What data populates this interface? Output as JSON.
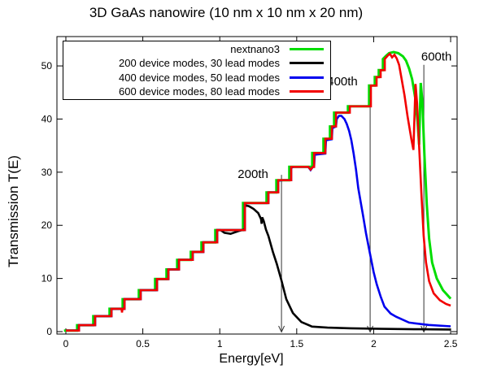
{
  "title": "3D GaAs nanowire (10 nm x 10 nm x 20 nm)",
  "chart_data": {
    "type": "line",
    "title": "3D GaAs nanowire (10 nm x 10 nm x 20 nm)",
    "xlabel": "Energy[eV]",
    "ylabel": "Transmission T(E)",
    "xlim": [
      -0.058,
      2.542
    ],
    "ylim": [
      -0.46,
      55.52
    ],
    "xticks": [
      0,
      0.5,
      1,
      1.5,
      2,
      2.5
    ],
    "yticks": [
      0,
      10,
      20,
      30,
      40,
      50
    ],
    "grid": false,
    "legend_position": "top-left-inside",
    "series": [
      {
        "name": "nextnano3",
        "color": "#00dd00",
        "width": 3,
        "points": [
          [
            -0.012,
            0.2
          ],
          [
            0.073,
            0.2
          ],
          [
            0.073,
            1.2
          ],
          [
            0.178,
            1.2
          ],
          [
            0.178,
            2.9
          ],
          [
            0.284,
            2.9
          ],
          [
            0.284,
            4.3
          ],
          [
            0.369,
            4.3
          ],
          [
            0.369,
            6.1
          ],
          [
            0.474,
            6.1
          ],
          [
            0.474,
            7.8
          ],
          [
            0.58,
            7.8
          ],
          [
            0.58,
            9.9
          ],
          [
            0.654,
            9.9
          ],
          [
            0.654,
            11.7
          ],
          [
            0.723,
            11.7
          ],
          [
            0.723,
            13.5
          ],
          [
            0.812,
            13.5
          ],
          [
            0.812,
            15
          ],
          [
            0.881,
            15
          ],
          [
            0.881,
            16.8
          ],
          [
            0.971,
            16.8
          ],
          [
            0.971,
            19.1
          ],
          [
            1.151,
            19.1
          ],
          [
            1.151,
            24.2
          ],
          [
            1.304,
            24.2
          ],
          [
            1.304,
            26.2
          ],
          [
            1.368,
            26.2
          ],
          [
            1.368,
            28.5
          ],
          [
            1.452,
            28.5
          ],
          [
            1.452,
            31
          ],
          [
            1.601,
            31
          ],
          [
            1.601,
            33.6
          ],
          [
            1.674,
            33.6
          ],
          [
            1.674,
            36.3
          ],
          [
            1.716,
            36.3
          ],
          [
            1.716,
            38.6
          ],
          [
            1.743,
            38.6
          ],
          [
            1.743,
            41.2
          ],
          [
            1.833,
            41.2
          ],
          [
            1.833,
            42.4
          ],
          [
            1.97,
            42.4
          ],
          [
            1.97,
            46.3
          ],
          [
            2.007,
            46.3
          ],
          [
            2.007,
            47.9
          ],
          [
            2.033,
            47.9
          ],
          [
            2.033,
            49.2
          ],
          [
            2.06,
            49.2
          ],
          [
            2.06,
            51.3
          ],
          [
            2.08,
            51.9
          ],
          [
            2.1,
            52.4
          ],
          [
            2.13,
            52.6
          ],
          [
            2.16,
            52.4
          ],
          [
            2.19,
            51.8
          ],
          [
            2.21,
            51.0
          ],
          [
            2.23,
            49.5
          ],
          [
            2.25,
            47.5
          ],
          [
            2.27,
            44.0
          ],
          [
            2.285,
            39.5
          ],
          [
            2.295,
            35.2
          ],
          [
            2.306,
            46.8
          ],
          [
            2.316,
            43.5
          ],
          [
            2.33,
            33.0
          ],
          [
            2.345,
            24.0
          ],
          [
            2.36,
            17.5
          ],
          [
            2.38,
            13.0
          ],
          [
            2.41,
            10.0
          ],
          [
            2.45,
            7.8
          ],
          [
            2.5,
            6.2
          ]
        ]
      },
      {
        "name": "200 device modes, 30 lead modes",
        "color": "#000000",
        "width": 2.6,
        "points": [
          [
            0,
            0.2
          ],
          [
            0.085,
            0.2
          ],
          [
            0.085,
            1.2
          ],
          [
            0.19,
            1.2
          ],
          [
            0.19,
            2.9
          ],
          [
            0.296,
            2.9
          ],
          [
            0.296,
            4.3
          ],
          [
            0.381,
            4.3
          ],
          [
            0.381,
            6.1
          ],
          [
            0.486,
            6.1
          ],
          [
            0.486,
            7.8
          ],
          [
            0.592,
            7.8
          ],
          [
            0.592,
            9.9
          ],
          [
            0.666,
            9.9
          ],
          [
            0.666,
            11.7
          ],
          [
            0.735,
            11.7
          ],
          [
            0.735,
            13.5
          ],
          [
            0.824,
            13.5
          ],
          [
            0.824,
            15
          ],
          [
            0.893,
            15
          ],
          [
            0.893,
            16.8
          ],
          [
            0.983,
            16.8
          ],
          [
            0.983,
            19.1
          ],
          [
            1.005,
            19.1
          ],
          [
            1.03,
            18.6
          ],
          [
            1.07,
            18.4
          ],
          [
            1.12,
            18.9
          ],
          [
            1.155,
            19.2
          ],
          [
            1.163,
            19.3
          ],
          [
            1.163,
            23.8
          ],
          [
            1.19,
            23.6
          ],
          [
            1.22,
            23.1
          ],
          [
            1.25,
            22.3
          ],
          [
            1.268,
            21.2
          ],
          [
            1.272,
            20.3
          ],
          [
            1.276,
            21.5
          ],
          [
            1.286,
            20.8
          ],
          [
            1.3,
            19.2
          ],
          [
            1.316,
            18.0
          ],
          [
            1.345,
            15.0
          ],
          [
            1.37,
            12.8
          ],
          [
            1.401,
            9.6
          ],
          [
            1.432,
            6.1
          ],
          [
            1.475,
            3.5
          ],
          [
            1.53,
            1.8
          ],
          [
            1.6,
            0.95
          ],
          [
            1.7,
            0.75
          ],
          [
            1.85,
            0.62
          ],
          [
            2.05,
            0.52
          ],
          [
            2.3,
            0.45
          ],
          [
            2.5,
            0.4
          ]
        ]
      },
      {
        "name": "400 device modes, 50 lead modes",
        "color": "#0000ee",
        "width": 2.6,
        "points": [
          [
            0,
            0.2
          ],
          [
            0.085,
            0.2
          ],
          [
            0.085,
            1.2
          ],
          [
            0.19,
            1.2
          ],
          [
            0.19,
            2.9
          ],
          [
            0.296,
            2.9
          ],
          [
            0.296,
            4.3
          ],
          [
            0.381,
            4.3
          ],
          [
            0.381,
            6.1
          ],
          [
            0.486,
            6.1
          ],
          [
            0.486,
            7.8
          ],
          [
            0.592,
            7.8
          ],
          [
            0.592,
            9.9
          ],
          [
            0.666,
            9.9
          ],
          [
            0.666,
            11.7
          ],
          [
            0.735,
            11.7
          ],
          [
            0.735,
            13.5
          ],
          [
            0.824,
            13.5
          ],
          [
            0.824,
            15
          ],
          [
            0.893,
            15
          ],
          [
            0.893,
            16.8
          ],
          [
            0.983,
            16.8
          ],
          [
            0.983,
            19.1
          ],
          [
            1.163,
            19.1
          ],
          [
            1.163,
            24.2
          ],
          [
            1.316,
            24.2
          ],
          [
            1.316,
            26.2
          ],
          [
            1.38,
            26.2
          ],
          [
            1.38,
            28.4
          ],
          [
            1.41,
            28.5
          ],
          [
            1.464,
            28.5
          ],
          [
            1.464,
            30.8
          ],
          [
            1.478,
            31
          ],
          [
            1.575,
            31
          ],
          [
            1.59,
            30.4
          ],
          [
            1.605,
            31
          ],
          [
            1.613,
            31
          ],
          [
            1.617,
            33.3
          ],
          [
            1.686,
            33.5
          ],
          [
            1.69,
            36.0
          ],
          [
            1.728,
            36.2
          ],
          [
            1.732,
            38.3
          ],
          [
            1.755,
            38.6
          ],
          [
            1.76,
            40.0
          ],
          [
            1.775,
            40.6
          ],
          [
            1.79,
            40.6
          ],
          [
            1.81,
            40.0
          ],
          [
            1.825,
            39.1
          ],
          [
            1.84,
            37.8
          ],
          [
            1.855,
            36.0
          ],
          [
            1.87,
            33.5
          ],
          [
            1.885,
            30.5
          ],
          [
            1.9,
            27.0
          ],
          [
            1.93,
            22.0
          ],
          [
            1.95,
            18.5
          ],
          [
            1.972,
            15.3
          ],
          [
            2.0,
            11.2
          ],
          [
            2.02,
            8.9
          ],
          [
            2.045,
            6.6
          ],
          [
            2.07,
            4.7
          ],
          [
            2.11,
            3.4
          ],
          [
            2.146,
            2.8
          ],
          [
            2.23,
            1.7
          ],
          [
            2.357,
            1.25
          ],
          [
            2.5,
            1.0
          ]
        ]
      },
      {
        "name": "600 device modes, 80 lead modes",
        "color": "#f20000",
        "width": 2.6,
        "points": [
          [
            0,
            0.2
          ],
          [
            0.085,
            0.2
          ],
          [
            0.085,
            1.2
          ],
          [
            0.19,
            1.2
          ],
          [
            0.19,
            2.9
          ],
          [
            0.296,
            2.9
          ],
          [
            0.296,
            4.3
          ],
          [
            0.362,
            4.3
          ],
          [
            0.365,
            3.6
          ],
          [
            0.368,
            4.3
          ],
          [
            0.381,
            4.3
          ],
          [
            0.381,
            6.1
          ],
          [
            0.486,
            6.1
          ],
          [
            0.486,
            7.8
          ],
          [
            0.592,
            7.8
          ],
          [
            0.592,
            9.9
          ],
          [
            0.666,
            9.9
          ],
          [
            0.666,
            11.7
          ],
          [
            0.735,
            11.7
          ],
          [
            0.735,
            13.5
          ],
          [
            0.824,
            13.5
          ],
          [
            0.824,
            15
          ],
          [
            0.893,
            15
          ],
          [
            0.893,
            16.8
          ],
          [
            0.983,
            16.8
          ],
          [
            0.983,
            19.1
          ],
          [
            1.163,
            19.1
          ],
          [
            1.163,
            24.2
          ],
          [
            1.316,
            24.2
          ],
          [
            1.316,
            26.2
          ],
          [
            1.38,
            26.2
          ],
          [
            1.38,
            28.5
          ],
          [
            1.464,
            28.5
          ],
          [
            1.464,
            31
          ],
          [
            1.575,
            31
          ],
          [
            1.59,
            30.5
          ],
          [
            1.605,
            31
          ],
          [
            1.613,
            31
          ],
          [
            1.613,
            33.6
          ],
          [
            1.686,
            33.6
          ],
          [
            1.686,
            36.3
          ],
          [
            1.728,
            36.3
          ],
          [
            1.728,
            38.6
          ],
          [
            1.755,
            38.6
          ],
          [
            1.755,
            41.2
          ],
          [
            1.845,
            41.2
          ],
          [
            1.845,
            42.4
          ],
          [
            1.982,
            42.4
          ],
          [
            1.982,
            46.3
          ],
          [
            2.019,
            46.3
          ],
          [
            2.019,
            47.9
          ],
          [
            2.045,
            47.9
          ],
          [
            2.045,
            49.2
          ],
          [
            2.072,
            49.2
          ],
          [
            2.072,
            51.3
          ],
          [
            2.09,
            51.9
          ],
          [
            2.105,
            52.3
          ],
          [
            2.12,
            51.6
          ],
          [
            2.135,
            52.1
          ],
          [
            2.15,
            51.4
          ],
          [
            2.165,
            50.2
          ],
          [
            2.18,
            47.8
          ],
          [
            2.2,
            44.5
          ],
          [
            2.22,
            40.5
          ],
          [
            2.245,
            36.2
          ],
          [
            2.258,
            34.2
          ],
          [
            2.272,
            46.6
          ],
          [
            2.282,
            43.0
          ],
          [
            2.295,
            35.0
          ],
          [
            2.31,
            26.0
          ],
          [
            2.325,
            18.0
          ],
          [
            2.34,
            13.0
          ],
          [
            2.36,
            9.5
          ],
          [
            2.39,
            7.2
          ],
          [
            2.43,
            5.9
          ],
          [
            2.47,
            5.2
          ],
          [
            2.5,
            4.9
          ]
        ]
      }
    ],
    "annotations": [
      {
        "text": "200th",
        "color": "#000000",
        "label_x": 1.216,
        "label_y": 29.7,
        "arrow_x": 1.401,
        "arrow_top": 29.5
      },
      {
        "text": "400th",
        "color": "#0000ee",
        "label_x": 1.797,
        "label_y": 47.1,
        "arrow_x": 1.977,
        "arrow_top": 46.5
      },
      {
        "text": "600th",
        "color": "#f20000",
        "label_x": 2.408,
        "label_y": 51.8,
        "arrow_x": 2.326,
        "arrow_top": 50.2
      }
    ]
  }
}
